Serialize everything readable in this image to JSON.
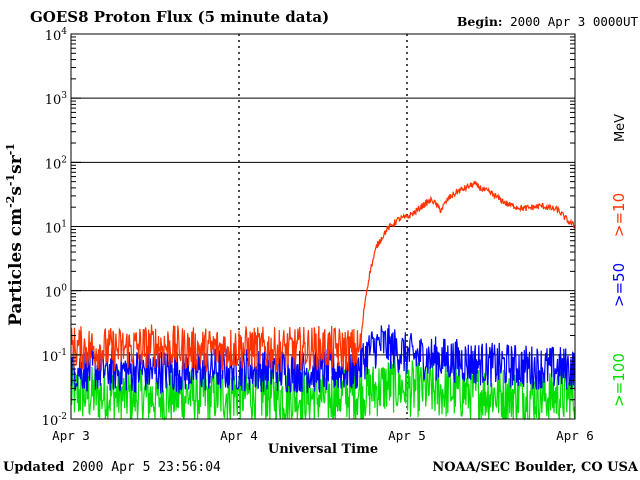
{
  "header": {
    "title": "GOES8 Proton Flux (5 minute data)",
    "begin_label": "Begin:",
    "begin_value": "2000 Apr 3 0000UT"
  },
  "footer": {
    "updated_label": "Updated",
    "updated_value": "2000 Apr  5 23:56:04",
    "credit": "NOAA/SEC Boulder, CO USA"
  },
  "chart_data": {
    "type": "line",
    "title": "GOES8 Proton Flux (5 minute data)",
    "xlabel": "Universal Time",
    "ylabel": "Particles cm-2s-1sr-1",
    "ylabel_parts": [
      "Particles cm",
      "-2",
      "s",
      "-1",
      "sr",
      "-1"
    ],
    "yscale": "log",
    "ylim": [
      0.01,
      10000
    ],
    "y_ticks": [
      {
        "value": 0.01,
        "base": "10",
        "exp": "-2"
      },
      {
        "value": 0.1,
        "base": "10",
        "exp": "-1"
      },
      {
        "value": 1,
        "base": "10",
        "exp": "0"
      },
      {
        "value": 10,
        "base": "10",
        "exp": "1"
      },
      {
        "value": 100,
        "base": "10",
        "exp": "2"
      },
      {
        "value": 1000,
        "base": "10",
        "exp": "3"
      },
      {
        "value": 10000,
        "base": "10",
        "exp": "4"
      }
    ],
    "xlim": [
      0,
      3
    ],
    "x_unit": "days since 2000 Apr 3 0000UT",
    "x_ticks": [
      {
        "value": 0,
        "label": "Apr 3"
      },
      {
        "value": 1,
        "label": "Apr 4"
      },
      {
        "value": 2,
        "label": "Apr 5"
      },
      {
        "value": 3,
        "label": "Apr 6"
      }
    ],
    "grid": true,
    "legend": {
      "placement": "right-vertical",
      "unit": "MeV",
      "entries": [
        {
          "label": ">=10",
          "color": "#ff3300"
        },
        {
          "label": ">=50",
          "color": "#0000ff"
        },
        {
          "label": ">=100",
          "color": "#00dd00"
        }
      ]
    },
    "series": [
      {
        "name": ">=10 MeV",
        "color": "#ff3300",
        "x": [
          0,
          0.25,
          0.5,
          0.75,
          1.0,
          1.25,
          1.5,
          1.65,
          1.72,
          1.75,
          1.78,
          1.82,
          1.88,
          1.95,
          2.0,
          2.05,
          2.1,
          2.15,
          2.2,
          2.25,
          2.3,
          2.35,
          2.4,
          2.45,
          2.5,
          2.55,
          2.6,
          2.7,
          2.8,
          2.9,
          2.96,
          3.0
        ],
        "values": [
          0.13,
          0.12,
          0.14,
          0.12,
          0.13,
          0.12,
          0.13,
          0.12,
          0.12,
          0.7,
          2.0,
          5.0,
          9.0,
          13.0,
          14.0,
          17.0,
          22.0,
          26.0,
          18.0,
          28.0,
          35.0,
          40.0,
          46.0,
          38.0,
          33.0,
          27.0,
          22.0,
          19.0,
          21.0,
          18.0,
          12.0,
          10.0
        ]
      },
      {
        "name": ">=50 MeV",
        "color": "#0000ff",
        "x": [
          0,
          0.5,
          1.0,
          1.5,
          1.7,
          1.78,
          1.85,
          2.0,
          2.5,
          3.0
        ],
        "values": [
          0.06,
          0.055,
          0.06,
          0.055,
          0.06,
          0.12,
          0.15,
          0.1,
          0.07,
          0.06
        ]
      },
      {
        "name": ">=100 MeV",
        "color": "#00dd00",
        "x": [
          0,
          0.5,
          1.0,
          1.5,
          1.8,
          1.9,
          2.0,
          2.5,
          3.0
        ],
        "values": [
          0.025,
          0.022,
          0.025,
          0.022,
          0.028,
          0.035,
          0.03,
          0.025,
          0.022
        ]
      }
    ]
  }
}
